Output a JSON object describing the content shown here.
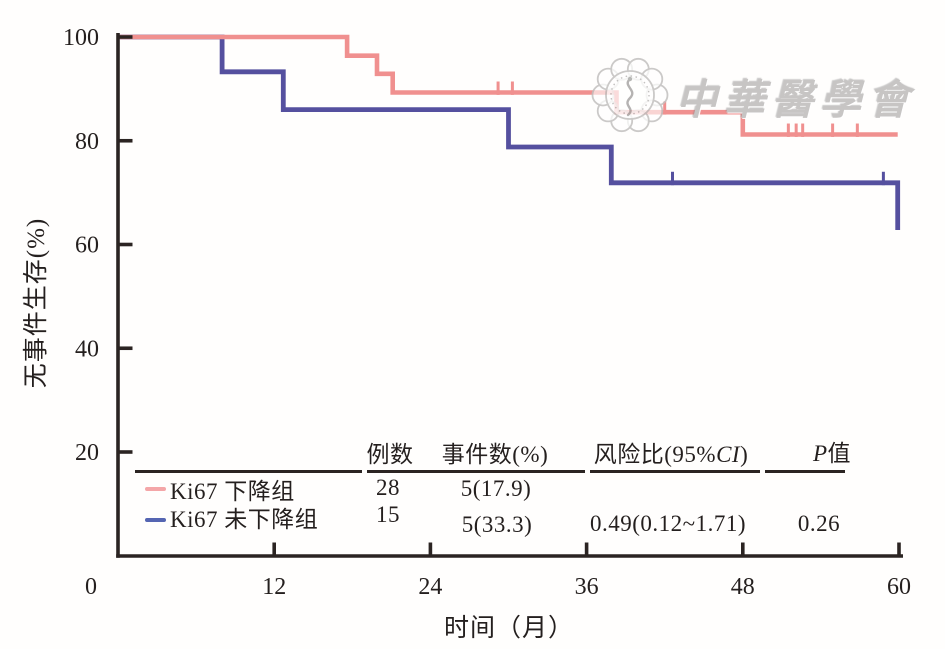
{
  "figure": {
    "background": "#fffefd",
    "axis_color": "#2b2422",
    "text_color": "#241f1e"
  },
  "watermark": {
    "logo": "cma-plum-blossom-seal",
    "text": "中華醫學會",
    "color": "#c7c5c4"
  },
  "chart_data": {
    "type": "line",
    "subtype": "kaplan-meier-step",
    "title": "",
    "xlabel": "时间（月）",
    "ylabel": "无事件生存(%)",
    "xlim": [
      0,
      60
    ],
    "ylim": [
      0,
      100
    ],
    "x_ticks": [
      0,
      12,
      24,
      36,
      48,
      60
    ],
    "y_ticks": [
      20,
      40,
      60,
      80,
      100
    ],
    "grid": false,
    "legend_position": "bottom-left-inside",
    "series": [
      {
        "name": "Ki67 下降组",
        "color": "#F0908F",
        "legend_color": "#F4A6A8",
        "points": [
          [
            0,
            100
          ],
          [
            17.6,
            100
          ],
          [
            17.6,
            96.4
          ],
          [
            19.9,
            96.4
          ],
          [
            19.9,
            92.9
          ],
          [
            21.1,
            92.9
          ],
          [
            21.1,
            89.3
          ],
          [
            38.3,
            89.3
          ],
          [
            38.3,
            85.5
          ],
          [
            48,
            85.5
          ],
          [
            48,
            81.2
          ],
          [
            59.9,
            81.2
          ]
        ],
        "censor_marks": [
          [
            29.2,
            89.3
          ],
          [
            30.3,
            89.3
          ],
          [
            42,
            85.5
          ],
          [
            51.5,
            81.2
          ],
          [
            52.1,
            81.2
          ],
          [
            52.6,
            81.2
          ],
          [
            54.9,
            81.2
          ],
          [
            56.8,
            81.2
          ]
        ]
      },
      {
        "name": "Ki67 未下降组",
        "color": "#55509F",
        "legend_color": "#5565B2",
        "points": [
          [
            0,
            100
          ],
          [
            8,
            100
          ],
          [
            8,
            93.3
          ],
          [
            12.7,
            93.3
          ],
          [
            12.7,
            86
          ],
          [
            30,
            86
          ],
          [
            30,
            78.8
          ],
          [
            37.9,
            78.8
          ],
          [
            37.9,
            71.9
          ],
          [
            59.9,
            71.9
          ],
          [
            59.9,
            62.8
          ]
        ],
        "censor_marks": [
          [
            42.6,
            71.9
          ],
          [
            58.8,
            71.9
          ]
        ]
      }
    ]
  },
  "table": {
    "headers": {
      "n": "例数",
      "events": "事件数(%)",
      "hr_prefix": "风险比(95%",
      "hr_italic": "CI",
      "hr_suffix": ")",
      "p_italic": "P",
      "p_suffix": "值"
    },
    "rows": [
      {
        "group": "Ki67 下降组",
        "n": "28",
        "events": "5(17.9)",
        "hr": "",
        "p": ""
      },
      {
        "group": "Ki67 未下降组",
        "n": "15",
        "events": "5(33.3)",
        "hr": "0.49(0.12~1.71)",
        "p": "0.26"
      }
    ]
  }
}
